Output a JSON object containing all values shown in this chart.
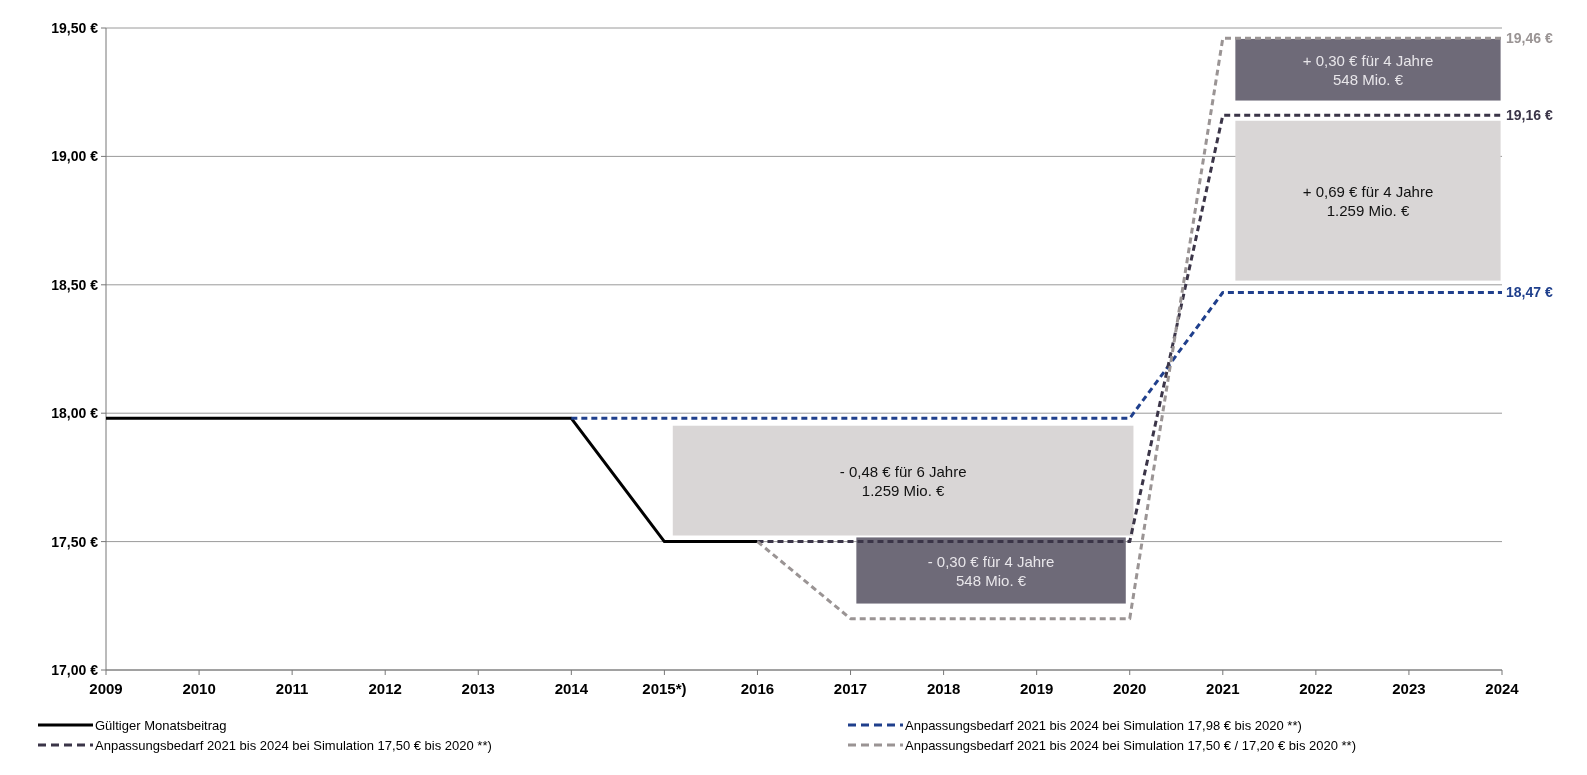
{
  "chart_data": {
    "type": "line",
    "xlim": [
      2009,
      2024
    ],
    "xticks": [
      2009,
      2010,
      2011,
      2012,
      2013,
      2014,
      {
        "value": 2015,
        "label": "2015*)"
      },
      2016,
      2017,
      2018,
      2019,
      2020,
      2021,
      2022,
      2023,
      2024
    ],
    "ylim": [
      17.0,
      19.5
    ],
    "yticks": [
      {
        "value": 17.0,
        "label": "17,00 €"
      },
      {
        "value": 17.5,
        "label": "17,50 €"
      },
      {
        "value": 18.0,
        "label": "18,00 €"
      },
      {
        "value": 18.5,
        "label": "18,50 €"
      },
      {
        "value": 19.0,
        "label": "19,00 €"
      },
      {
        "value": 19.5,
        "label": "19,50 €"
      }
    ],
    "grid": "y",
    "legend": "bottom",
    "marker": "none",
    "series": [
      {
        "name": "Gültiger Monatsbeitrag",
        "color": "#000000",
        "line_style": "solid",
        "x": [
          2009,
          2014,
          2015,
          2016
        ],
        "values": [
          17.98,
          17.98,
          17.5,
          17.5
        ]
      },
      {
        "name": "Anpassungsbedarf 2021 bis 2024 bei Simulation 17,98 € bis 2020 **)",
        "color": "#1f3f8c",
        "line_style": "dashed",
        "x": [
          2014,
          2020,
          2021,
          2024
        ],
        "values": [
          17.98,
          17.98,
          18.47,
          18.47
        ],
        "value_labels": [
          null,
          null,
          null,
          "18,47 €"
        ]
      },
      {
        "name": "Anpassungsbedarf 2021 bis 2024 bei Simulation 17,50 € bis 2020 **)",
        "color": "#3b3548",
        "line_style": "dashed",
        "x": [
          2016,
          2020,
          2021,
          2024
        ],
        "values": [
          17.5,
          17.5,
          19.16,
          19.16
        ],
        "value_labels": [
          null,
          null,
          null,
          "19,16 €"
        ]
      },
      {
        "name": "Anpassungsbedarf 2021 bis 2024 bei Simulation 17,50 € / 17,20 € bis 2020 **)",
        "color": "#9a9494",
        "line_style": "dashed",
        "x": [
          2016,
          2017,
          2020,
          2021,
          2024
        ],
        "values": [
          17.5,
          17.2,
          17.2,
          19.46,
          19.46
        ],
        "value_labels": [
          null,
          null,
          null,
          null,
          "19,46 €"
        ]
      }
    ],
    "annotations": [
      "- 0,48 € für 6 Jahre\n1.259 Mio. €",
      "- 0,30 € für 4 Jahre\n548 Mio. €",
      "+ 0,69 € für 4 Jahre\n1.259 Mio. €",
      "+ 0,30 € für 4 Jahre\n548 Mio. €"
    ]
  }
}
